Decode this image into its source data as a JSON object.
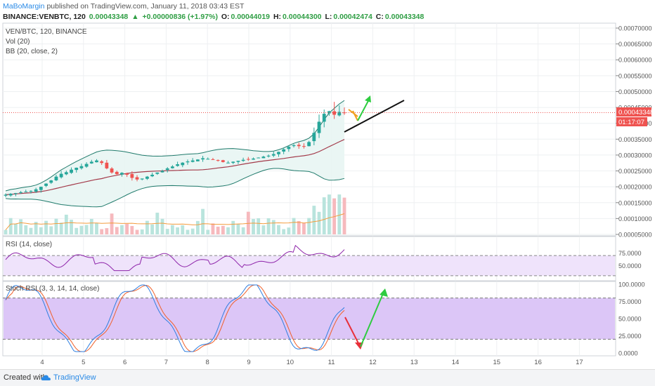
{
  "header": {
    "author": "MaBoMargin",
    "published_text": "published on TradingView.com, January 11, 2018 03:43 EST",
    "symbol": "BINANCE:VENBTC, 120",
    "last": "0.00043348",
    "change": "+0.00000836 (+1.97%)",
    "o_label": "O:",
    "o_value": "0.00044019",
    "h_label": "H:",
    "h_value": "0.00044300",
    "l_label": "L:",
    "l_value": "0.00042474",
    "c_label": "C:",
    "c_value": "0.00043348"
  },
  "legends": {
    "main_title": "VEN/BTC, 120, BINANCE",
    "vol": "Vol (20)",
    "bb": "BB (20, close, 2)",
    "rsi": "RSI (14, close)",
    "stoch": "Stoch RSI (3, 3, 14, 14, close)"
  },
  "price_badge": "0.00043348",
  "time_badge": "01:17:07",
  "footer": {
    "created": "Created with",
    "brand": "TradingView"
  },
  "colors": {
    "up": "#26a69a",
    "down": "#ef5350",
    "accent": "#2a8ae6",
    "rsi_fill": "#efe3fb",
    "stoch_fill": "#dcc6f7"
  },
  "chart_data": [
    {
      "type": "candlestick",
      "title": "VEN/BTC, 120, BINANCE",
      "x_ticks": [
        "4",
        "5",
        "6",
        "7",
        "8",
        "9",
        "10",
        "11",
        "12",
        "13",
        "14",
        "15",
        "16",
        "17"
      ],
      "y_ticks": [
        "0.00070000",
        "0.00065000",
        "0.00060000",
        "0.00055000",
        "0.00050000",
        "0.00045000",
        "0.00040000",
        "0.00035000",
        "0.00030000",
        "0.00025000",
        "0.00020000",
        "0.00015000",
        "0.00010000",
        "0.00005000"
      ],
      "y_range": [
        5e-05,
        0.0007
      ],
      "last_price": 0.00043348,
      "close_series": [
        0.000175,
        0.000178,
        0.00018,
        0.000183,
        0.000185,
        0.000187,
        0.000192,
        0.0002,
        0.00021,
        0.00022,
        0.000232,
        0.000241,
        0.000246,
        0.000254,
        0.00026,
        0.000265,
        0.000272,
        0.000279,
        0.000283,
        0.000275,
        0.000258,
        0.000245,
        0.00024,
        0.000244,
        0.000238,
        0.000228,
        0.000223,
        0.000226,
        0.000232,
        0.000238,
        0.000245,
        0.00025,
        0.000258,
        0.000264,
        0.000271,
        0.000276,
        0.00028,
        0.000283,
        0.000286,
        0.00029,
        0.000288,
        0.000285,
        0.000282,
        0.000278,
        0.000276,
        0.000279,
        0.000282,
        0.000285,
        0.000287,
        0.000289,
        0.000292,
        0.000295,
        0.000298,
        0.000303,
        0.00031,
        0.000318,
        0.000326,
        0.000331,
        0.000328,
        0.000326,
        0.000341,
        0.00037,
        0.000405,
        0.00043,
        0.000438,
        0.000427,
        0.000436,
        0.000433
      ],
      "series": [
        {
          "name": "Vol (20)",
          "type": "bar"
        },
        {
          "name": "BB (20, close, 2)",
          "type": "band"
        }
      ]
    },
    {
      "type": "line",
      "title": "RSI (14, close)",
      "y_ticks": [
        "75.0000",
        "50.0000"
      ],
      "y_range": [
        20,
        105
      ],
      "band": [
        30,
        70
      ]
    },
    {
      "type": "line",
      "title": "Stoch RSI (3, 3, 14, 14, close)",
      "y_ticks": [
        "100.0000",
        "75.0000",
        "50.0000",
        "25.0000",
        "0.0000"
      ],
      "y_range": [
        0,
        100
      ],
      "band": [
        20,
        80
      ]
    }
  ]
}
